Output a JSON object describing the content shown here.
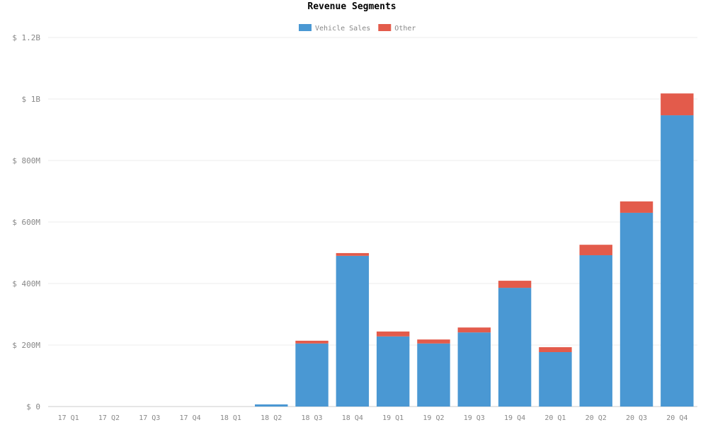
{
  "chart_data": {
    "type": "bar",
    "stacked": true,
    "title": "Revenue Segments",
    "xlabel": "",
    "ylabel": "",
    "ylim": [
      0,
      1200
    ],
    "yunit": "M",
    "yticks": [
      0,
      200,
      400,
      600,
      800,
      1000,
      1200
    ],
    "ytick_labels": [
      "$ 0",
      "$ 200M",
      "$ 400M",
      "$ 600M",
      "$ 800M",
      "$ 1B",
      "$ 1.2B"
    ],
    "categories": [
      "17 Q1",
      "17 Q2",
      "17 Q3",
      "17 Q4",
      "18 Q1",
      "18 Q2",
      "18 Q3",
      "18 Q4",
      "19 Q1",
      "19 Q2",
      "19 Q3",
      "19 Q4",
      "20 Q1",
      "20 Q2",
      "20 Q3",
      "20 Q4"
    ],
    "series": [
      {
        "name": "Vehicle Sales",
        "color": "#4a98d3",
        "values": [
          0,
          0,
          0,
          0,
          0,
          7,
          205,
          490,
          228,
          205,
          241,
          386,
          177,
          492,
          630,
          947
        ]
      },
      {
        "name": "Other",
        "color": "#e35b4b",
        "values": [
          0,
          0,
          0,
          0,
          0,
          0,
          9,
          9,
          16,
          13,
          16,
          23,
          16,
          34,
          37,
          71
        ]
      }
    ],
    "legend": "top-center",
    "grid": true
  }
}
